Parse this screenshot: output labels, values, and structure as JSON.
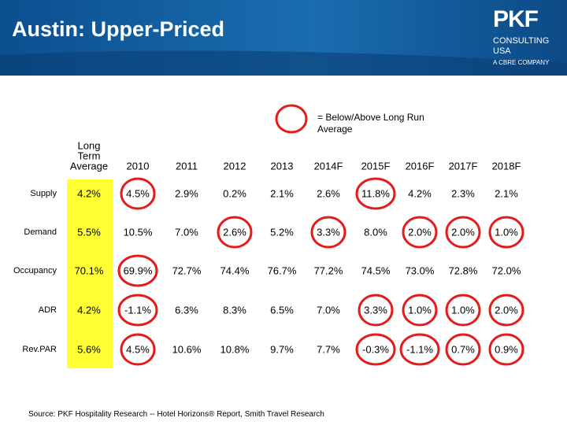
{
  "header": {
    "title": "Austin: Upper-Priced",
    "logo": {
      "brand": "PKF",
      "line1": "CONSULTING",
      "line2": "USA",
      "line3": "A CBRE COMPANY"
    }
  },
  "legend": "= Below/Above Long Run Average",
  "table": {
    "columns": [
      "Long Term Average",
      "2010",
      "2011",
      "2012",
      "2013",
      "2014F",
      "2015F",
      "2016F",
      "2017F",
      "2018F"
    ],
    "rows": [
      {
        "label": "Supply",
        "values": [
          "4.2%",
          "4.5%",
          "2.9%",
          "0.2%",
          "2.1%",
          "2.6%",
          "11.8%",
          "4.2%",
          "2.3%",
          "2.1%"
        ],
        "circled": [
          1,
          6
        ]
      },
      {
        "label": "Demand",
        "values": [
          "5.5%",
          "10.5%",
          "7.0%",
          "2.6%",
          "5.2%",
          "3.3%",
          "8.0%",
          "2.0%",
          "2.0%",
          "1.0%"
        ],
        "circled": [
          3,
          5,
          7,
          8,
          9
        ]
      },
      {
        "label": "Occupancy",
        "values": [
          "70.1%",
          "69.9%",
          "72.7%",
          "74.4%",
          "76.7%",
          "77.2%",
          "74.5%",
          "73.0%",
          "72.8%",
          "72.0%"
        ],
        "circled": [
          1
        ]
      },
      {
        "label": "ADR",
        "values": [
          "4.2%",
          "-1.1%",
          "6.3%",
          "8.3%",
          "6.5%",
          "7.0%",
          "3.3%",
          "1.0%",
          "1.0%",
          "2.0%"
        ],
        "circled": [
          1,
          6,
          7,
          8,
          9
        ]
      },
      {
        "label": "Rev.PAR",
        "values": [
          "5.6%",
          "4.5%",
          "10.6%",
          "10.8%",
          "9.7%",
          "7.7%",
          "-0.3%",
          "-1.1%",
          "0.7%",
          "0.9%"
        ],
        "circled": [
          1,
          6,
          7,
          8,
          9
        ]
      }
    ]
  },
  "source": "Source: PKF Hospitality Research -- Hotel Horizons® Report,  Smith Travel Research"
}
